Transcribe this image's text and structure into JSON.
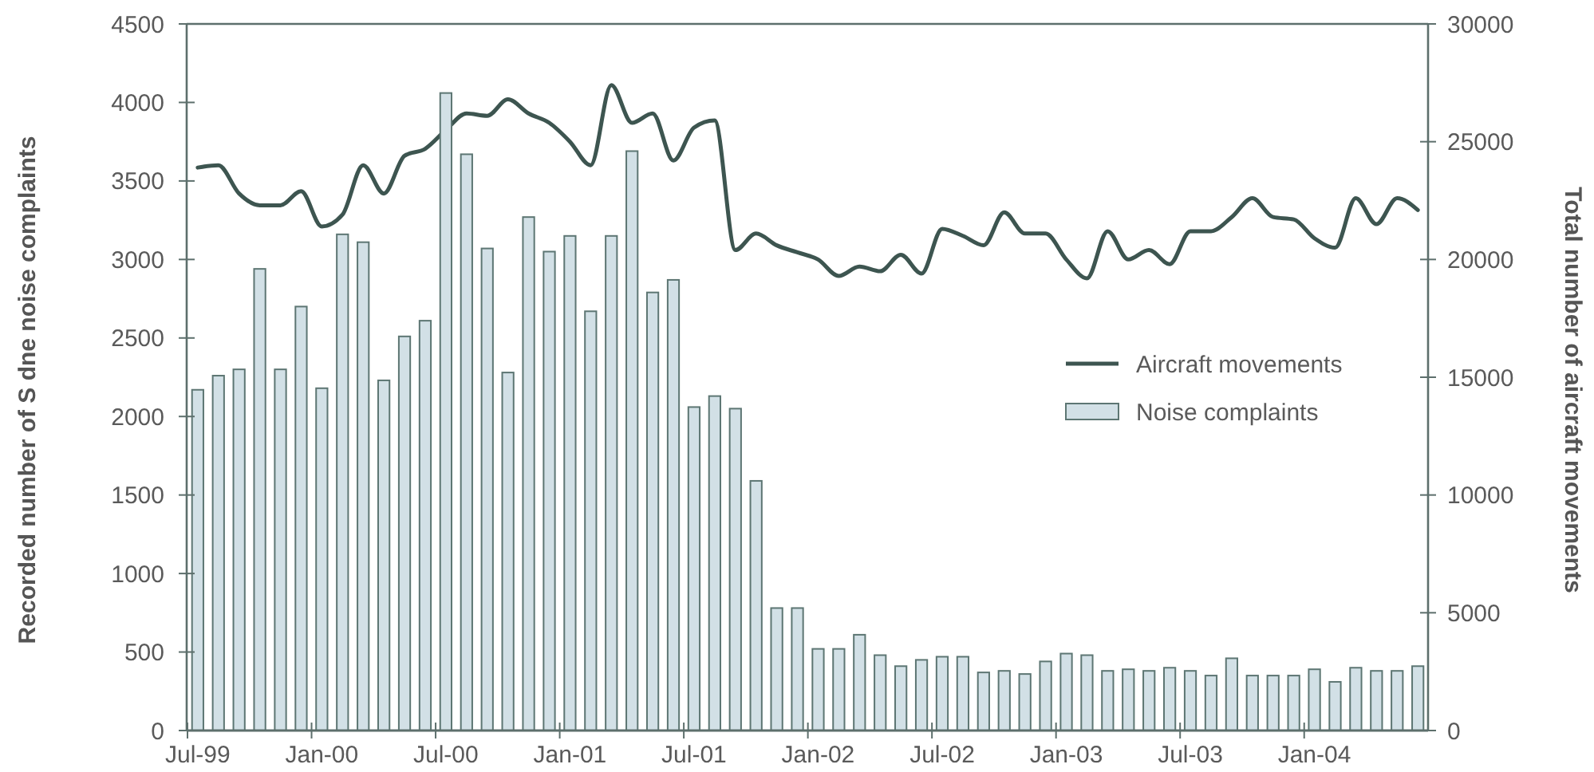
{
  "chart_data": {
    "type": "bar",
    "ylabel": "Recorded number of S dne  noise complaints",
    "y2label": "Total number of aircraft movements",
    "categories": [
      "Jul-99",
      null,
      null,
      null,
      null,
      null,
      "Jan-00",
      null,
      null,
      null,
      null,
      null,
      "Jul-00",
      null,
      null,
      null,
      null,
      null,
      "Jan-01",
      null,
      null,
      null,
      null,
      null,
      "Jul-01",
      null,
      null,
      null,
      null,
      null,
      "Jan-02",
      null,
      null,
      null,
      null,
      null,
      "Jul-02",
      null,
      null,
      null,
      null,
      null,
      "Jan-03",
      null,
      null,
      null,
      null,
      null,
      "Jul-03",
      null,
      null,
      null,
      null,
      null,
      "Jan-04",
      null,
      null,
      null,
      null,
      null
    ],
    "series": [
      {
        "name": "Aircraft movements",
        "type": "line",
        "axis": "y2",
        "color": "#3d5550",
        "values": [
          23900,
          24000,
          22800,
          22300,
          22300,
          22900,
          21400,
          21900,
          24000,
          22800,
          24400,
          24700,
          25500,
          26200,
          26100,
          26800,
          26200,
          25800,
          25000,
          24000,
          27400,
          25800,
          26200,
          24200,
          25600,
          25900,
          20400,
          21100,
          20600,
          20300,
          20000,
          19300,
          19700,
          19500,
          20200,
          19400,
          21300,
          21000,
          20600,
          22000,
          21100,
          21100,
          20000,
          19200,
          21200,
          20000,
          20400,
          19800,
          21200,
          21200,
          21800,
          22600,
          21800,
          21700,
          20900,
          20500,
          22600,
          21500,
          22600,
          22100
        ]
      },
      {
        "name": "Noise complaints",
        "color": "#d2e0e6",
        "values": [
          2170,
          2260,
          2300,
          2940,
          2300,
          2700,
          2180,
          3160,
          3110,
          2230,
          2510,
          2610,
          4060,
          3670,
          3070,
          2280,
          3270,
          3050,
          3150,
          2670,
          3150,
          3690,
          2790,
          2870,
          2060,
          2130,
          2050,
          1590,
          780,
          780,
          520,
          520,
          610,
          480,
          410,
          450,
          470,
          470,
          370,
          380,
          360,
          440,
          490,
          480,
          380,
          390,
          380,
          400,
          380,
          350,
          460,
          350,
          350,
          350,
          390,
          310,
          400,
          380,
          380,
          410
        ]
      }
    ],
    "ylim": [
      0,
      4500
    ],
    "yticks": [
      0,
      500,
      1000,
      1500,
      2000,
      2500,
      3000,
      3500,
      4000,
      4500
    ],
    "y2lim": [
      0,
      30000
    ],
    "y2ticks": [
      0,
      5000,
      10000,
      15000,
      20000,
      25000,
      30000
    ],
    "grid": false,
    "legend": "right"
  }
}
